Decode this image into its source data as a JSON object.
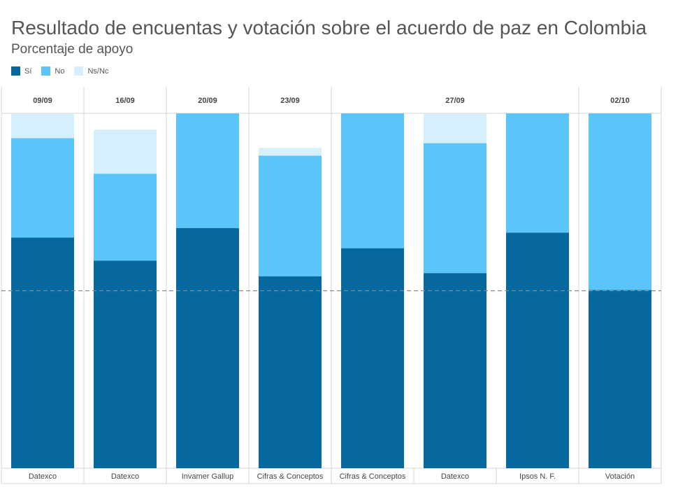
{
  "header": {
    "title": "Resultado de encuentas y votación sobre el acuerdo de paz en Colombia",
    "subtitle": "Porcentaje de apoyo"
  },
  "chart_data": {
    "type": "bar",
    "stacked": true,
    "normalized": true,
    "title": "Resultado de encuentas y votación sobre el acuerdo de paz en Colombia",
    "subtitle": "Porcentaje de apoyo",
    "ylim": [
      0,
      100
    ],
    "reference_line": 50,
    "colors": {
      "si": "#06689c",
      "no": "#5bc4f8",
      "nsnc": "#d6effd"
    },
    "legend": [
      {
        "key": "si",
        "label": "Sí"
      },
      {
        "key": "no",
        "label": "No"
      },
      {
        "key": "nsnc",
        "label": "Ns/Nc"
      }
    ],
    "groups": [
      {
        "date": "09/09",
        "bars": 1
      },
      {
        "date": "16/09",
        "bars": 1
      },
      {
        "date": "20/09",
        "bars": 1
      },
      {
        "date": "23/09",
        "bars": 1
      },
      {
        "date": "27/09",
        "bars": 3
      },
      {
        "date": "02/10",
        "bars": 1
      }
    ],
    "categories": [
      "Datexco",
      "Datexco",
      "Invamer Gallup",
      "Cifras & Conceptos",
      "Cifras & Conceptos",
      "Datexco",
      "Ipsos N. F.",
      "Votación"
    ],
    "series": [
      {
        "name": "Sí",
        "key": "si",
        "values": [
          65,
          58.5,
          67.7,
          54.1,
          62,
          55,
          66.4,
          50.2
        ]
      },
      {
        "name": "No",
        "key": "no",
        "values": [
          28,
          24.5,
          32.3,
          34,
          38,
          36.6,
          33.6,
          49.8
        ]
      },
      {
        "name": "Ns/Nc",
        "key": "nsnc",
        "values": [
          7,
          12.4,
          0,
          2.2,
          0,
          8.4,
          0,
          0
        ]
      }
    ]
  }
}
